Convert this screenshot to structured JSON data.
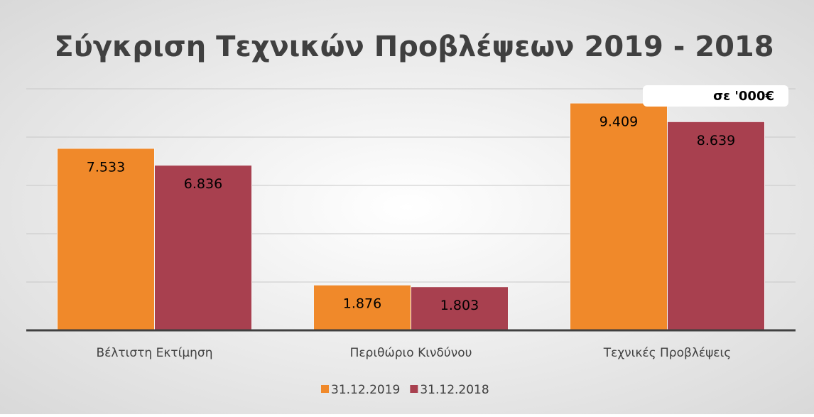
{
  "chart_data": {
    "type": "bar",
    "title": "Σύγκριση Τεχνικών Προβλέψεων 2019 - 2018",
    "annotation": "σε '000€",
    "categories": [
      "Βέλτιστη Εκτίμηση",
      "Περιθώριο Κινδύνου",
      "Τεχνικές Προβλέψεις"
    ],
    "series": [
      {
        "name": "31.12.2019",
        "color": "#f0892a",
        "values": [
          7533,
          1876,
          9409
        ],
        "value_labels": [
          "7.533",
          "1.876",
          "9.409"
        ]
      },
      {
        "name": "31.12.2018",
        "color": "#a8404f",
        "values": [
          6836,
          1803,
          8639
        ],
        "value_labels": [
          "6.836",
          "1.803",
          "8.639"
        ]
      }
    ],
    "ylim": [
      0,
      10000
    ],
    "yticks": [
      0,
      2000,
      4000,
      6000,
      8000,
      10000
    ],
    "grid": true,
    "legend": "bottom"
  }
}
